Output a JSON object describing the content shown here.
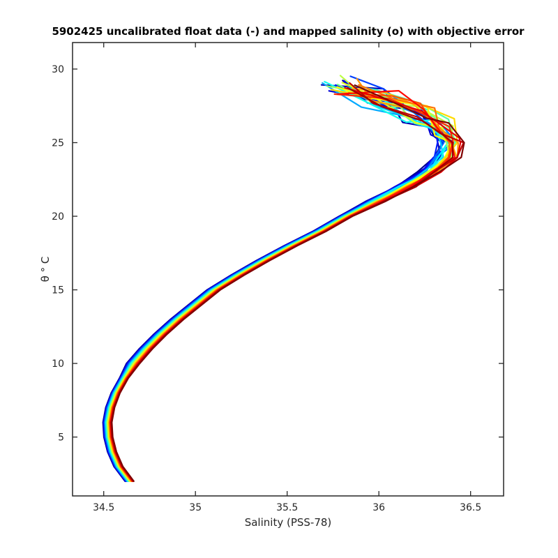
{
  "chart_data": {
    "type": "line",
    "title": "5902425 uncalibrated float data (-) and mapped salinity (o) with objective error",
    "xlabel": "Salinity (PSS-78)",
    "ylabel": "θ ° C",
    "xlim": [
      34.33,
      36.68
    ],
    "ylim": [
      1.0,
      31.8
    ],
    "xticks": [
      "34.5",
      "35",
      "35.5",
      "36",
      "36.5"
    ],
    "yticks": [
      "5",
      "10",
      "15",
      "20",
      "25",
      "30"
    ],
    "grid": false,
    "legend": "none",
    "colormap": "jet",
    "colormap_stops": [
      "#00008f",
      "#0000ff",
      "#00ffff",
      "#ffff00",
      "#ff0000",
      "#800000"
    ],
    "series_count": 30,
    "representative_profile": {
      "theta": [
        2.0,
        3.0,
        4.0,
        5.0,
        6.0,
        7.0,
        8.0,
        9.0,
        10.0,
        11.0,
        12.0,
        13.0,
        14.0,
        15.0,
        16.0,
        17.0,
        18.0,
        19.0,
        20.0,
        21.0,
        22.0,
        23.0,
        24.0,
        25.0,
        26.0,
        27.0,
        28.0,
        29.0
      ],
      "salinity": [
        34.64,
        34.58,
        34.545,
        34.525,
        34.52,
        34.535,
        34.565,
        34.61,
        34.66,
        34.73,
        34.81,
        34.9,
        35.0,
        35.1,
        35.23,
        35.37,
        35.52,
        35.68,
        35.82,
        35.98,
        36.14,
        36.28,
        36.37,
        36.4,
        36.35,
        36.22,
        36.0,
        35.8
      ]
    }
  }
}
